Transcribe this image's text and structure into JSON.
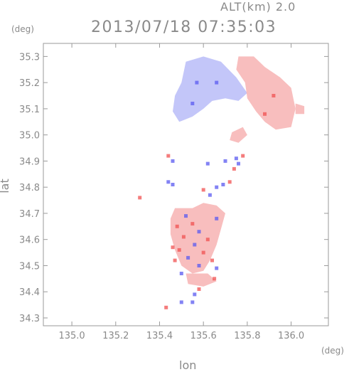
{
  "header": {
    "altitude_label": "ALT(km) 2.0",
    "timestamp": "2013/07/18 07:35:03"
  },
  "chart_data": {
    "type": "heatmap",
    "title": "2013/07/18 07:35:03",
    "subtitle": "ALT(km) 2.0",
    "xlabel": "lon",
    "ylabel": "lat",
    "x_unit": "(deg)",
    "y_unit": "(deg)",
    "xlim": [
      134.87,
      136.17
    ],
    "ylim": [
      34.27,
      35.35
    ],
    "x_ticks": [
      135.0,
      135.2,
      135.4,
      135.6,
      135.8,
      136.0
    ],
    "x_tick_labels": [
      "135.0",
      "135.2",
      "135.4",
      "135.6",
      "135.8",
      "136.0"
    ],
    "y_ticks": [
      34.3,
      34.4,
      34.5,
      34.6,
      34.7,
      34.8,
      34.9,
      35.0,
      35.1,
      35.2,
      35.3
    ],
    "y_tick_labels": [
      "34.3",
      "34.4",
      "34.5",
      "34.6",
      "34.7",
      "34.8",
      "34.9",
      "35.0",
      "35.1",
      "35.2",
      "35.3"
    ],
    "grid": false,
    "colors": {
      "negative": "#b8bcf8",
      "positive": "#f7b3b3",
      "negative_strong": "#5a5af0",
      "positive_strong": "#f05050",
      "axis": "#9a9a9a"
    },
    "regions": [
      {
        "name": "north-negative-echo",
        "sign": "negative",
        "polygon": [
          [
            135.52,
            35.28
          ],
          [
            135.6,
            35.3
          ],
          [
            135.68,
            35.28
          ],
          [
            135.75,
            35.22
          ],
          [
            135.8,
            35.16
          ],
          [
            135.76,
            35.13
          ],
          [
            135.7,
            35.14
          ],
          [
            135.64,
            35.13
          ],
          [
            135.6,
            35.1
          ],
          [
            135.55,
            35.07
          ],
          [
            135.49,
            35.05
          ],
          [
            135.46,
            35.09
          ],
          [
            135.47,
            35.15
          ],
          [
            135.5,
            35.2
          ]
        ]
      },
      {
        "name": "north-positive-echo",
        "sign": "positive",
        "polygon": [
          [
            135.76,
            35.3
          ],
          [
            135.83,
            35.3
          ],
          [
            135.88,
            35.26
          ],
          [
            135.95,
            35.22
          ],
          [
            136.0,
            35.18
          ],
          [
            136.02,
            35.1
          ],
          [
            136.0,
            35.03
          ],
          [
            135.93,
            35.02
          ],
          [
            135.88,
            35.05
          ],
          [
            135.84,
            35.09
          ],
          [
            135.8,
            35.14
          ],
          [
            135.79,
            35.2
          ],
          [
            135.75,
            35.25
          ]
        ]
      },
      {
        "name": "east-positive-tail",
        "sign": "positive",
        "polygon": [
          [
            136.02,
            35.12
          ],
          [
            136.06,
            35.11
          ],
          [
            136.06,
            35.08
          ],
          [
            136.02,
            35.08
          ]
        ]
      },
      {
        "name": "small-positive-blob",
        "sign": "positive",
        "polygon": [
          [
            135.73,
            35.01
          ],
          [
            135.78,
            35.03
          ],
          [
            135.8,
            35.0
          ],
          [
            135.76,
            34.97
          ],
          [
            135.72,
            34.98
          ]
        ]
      },
      {
        "name": "south-mixed-echo",
        "sign": "positive",
        "polygon": [
          [
            135.47,
            34.72
          ],
          [
            135.55,
            34.72
          ],
          [
            135.6,
            34.74
          ],
          [
            135.66,
            34.73
          ],
          [
            135.7,
            34.7
          ],
          [
            135.68,
            34.64
          ],
          [
            135.66,
            34.58
          ],
          [
            135.63,
            34.52
          ],
          [
            135.6,
            34.48
          ],
          [
            135.55,
            34.47
          ],
          [
            135.5,
            34.5
          ],
          [
            135.47,
            34.56
          ],
          [
            135.45,
            34.62
          ],
          [
            135.45,
            34.68
          ]
        ]
      },
      {
        "name": "south-lower-echo",
        "sign": "positive",
        "polygon": [
          [
            135.52,
            34.47
          ],
          [
            135.62,
            34.47
          ],
          [
            135.66,
            34.44
          ],
          [
            135.6,
            34.42
          ],
          [
            135.53,
            34.43
          ]
        ]
      }
    ],
    "points": [
      {
        "lon": 135.57,
        "lat": 35.2,
        "sign": "negative"
      },
      {
        "lon": 135.55,
        "lat": 35.12,
        "sign": "negative"
      },
      {
        "lon": 135.66,
        "lat": 35.2,
        "sign": "negative"
      },
      {
        "lon": 135.92,
        "lat": 35.15,
        "sign": "positive"
      },
      {
        "lon": 135.88,
        "lat": 35.08,
        "sign": "positive"
      },
      {
        "lon": 135.44,
        "lat": 34.92,
        "sign": "positive"
      },
      {
        "lon": 135.46,
        "lat": 34.9,
        "sign": "negative"
      },
      {
        "lon": 135.44,
        "lat": 34.82,
        "sign": "negative"
      },
      {
        "lon": 135.46,
        "lat": 34.81,
        "sign": "negative"
      },
      {
        "lon": 135.62,
        "lat": 34.89,
        "sign": "negative"
      },
      {
        "lon": 135.7,
        "lat": 34.9,
        "sign": "negative"
      },
      {
        "lon": 135.75,
        "lat": 34.91,
        "sign": "negative"
      },
      {
        "lon": 135.76,
        "lat": 34.89,
        "sign": "negative"
      },
      {
        "lon": 135.78,
        "lat": 34.92,
        "sign": "positive"
      },
      {
        "lon": 135.74,
        "lat": 34.87,
        "sign": "positive"
      },
      {
        "lon": 135.6,
        "lat": 34.79,
        "sign": "positive"
      },
      {
        "lon": 135.66,
        "lat": 34.8,
        "sign": "negative"
      },
      {
        "lon": 135.69,
        "lat": 34.81,
        "sign": "negative"
      },
      {
        "lon": 135.72,
        "lat": 34.82,
        "sign": "positive"
      },
      {
        "lon": 135.63,
        "lat": 34.77,
        "sign": "negative"
      },
      {
        "lon": 135.31,
        "lat": 34.76,
        "sign": "positive"
      },
      {
        "lon": 135.52,
        "lat": 34.69,
        "sign": "negative"
      },
      {
        "lon": 135.55,
        "lat": 34.66,
        "sign": "positive"
      },
      {
        "lon": 135.48,
        "lat": 34.65,
        "sign": "positive"
      },
      {
        "lon": 135.58,
        "lat": 34.63,
        "sign": "negative"
      },
      {
        "lon": 135.51,
        "lat": 34.61,
        "sign": "positive"
      },
      {
        "lon": 135.62,
        "lat": 34.6,
        "sign": "positive"
      },
      {
        "lon": 135.56,
        "lat": 34.58,
        "sign": "negative"
      },
      {
        "lon": 135.49,
        "lat": 34.56,
        "sign": "positive"
      },
      {
        "lon": 135.6,
        "lat": 34.55,
        "sign": "positive"
      },
      {
        "lon": 135.53,
        "lat": 34.53,
        "sign": "negative"
      },
      {
        "lon": 135.64,
        "lat": 34.52,
        "sign": "positive"
      },
      {
        "lon": 135.58,
        "lat": 34.5,
        "sign": "negative"
      },
      {
        "lon": 135.66,
        "lat": 34.68,
        "sign": "negative"
      },
      {
        "lon": 135.46,
        "lat": 34.57,
        "sign": "positive"
      },
      {
        "lon": 135.47,
        "lat": 34.52,
        "sign": "positive"
      },
      {
        "lon": 135.5,
        "lat": 34.47,
        "sign": "negative"
      },
      {
        "lon": 135.66,
        "lat": 34.49,
        "sign": "negative"
      },
      {
        "lon": 135.65,
        "lat": 34.45,
        "sign": "positive"
      },
      {
        "lon": 135.58,
        "lat": 34.41,
        "sign": "positive"
      },
      {
        "lon": 135.56,
        "lat": 34.39,
        "sign": "negative"
      },
      {
        "lon": 135.43,
        "lat": 34.34,
        "sign": "positive"
      },
      {
        "lon": 135.5,
        "lat": 34.36,
        "sign": "negative"
      },
      {
        "lon": 135.55,
        "lat": 34.36,
        "sign": "negative"
      }
    ]
  }
}
